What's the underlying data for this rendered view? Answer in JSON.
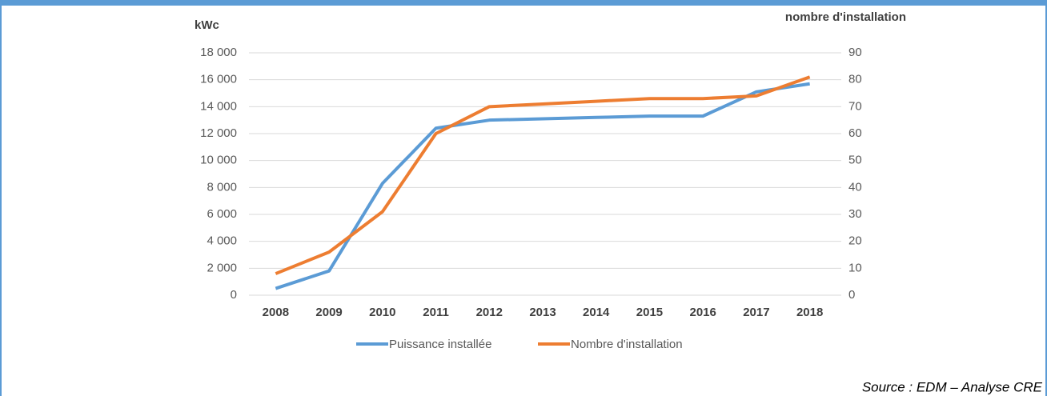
{
  "chart_data": {
    "type": "line",
    "y_label": "kWc",
    "y2_label": "nombre d'installation",
    "categories": [
      "2008",
      "2009",
      "2010",
      "2011",
      "2012",
      "2013",
      "2014",
      "2015",
      "2016",
      "2017",
      "2018"
    ],
    "series": [
      {
        "name": "Puissance installée",
        "color": "#5b9bd5",
        "values": [
          500,
          1800,
          8300,
          12400,
          13000,
          13100,
          13200,
          13300,
          13300,
          15100,
          15700
        ]
      },
      {
        "name": "Nombre d'installation",
        "color": "#ed7d31",
        "axis": "y2",
        "values": [
          8,
          16,
          31,
          60,
          70,
          71,
          72,
          73,
          73,
          74,
          81
        ]
      }
    ],
    "ylim": [
      0,
      18000
    ],
    "yticks": [
      0,
      {
        "value": 2000,
        "label": "2 000"
      },
      {
        "value": 4000,
        "label": "4 000"
      },
      {
        "value": 6000,
        "label": "6 000"
      },
      {
        "value": 8000,
        "label": "8 000"
      },
      {
        "value": 10000,
        "label": "10 000"
      },
      {
        "value": 12000,
        "label": "12 000"
      },
      {
        "value": 14000,
        "label": "14 000"
      },
      {
        "value": 16000,
        "label": "16 000"
      },
      {
        "value": 18000,
        "label": "18 000"
      }
    ],
    "y2lim": [
      0,
      90
    ],
    "y2ticks": [
      0,
      10,
      20,
      30,
      40,
      50,
      60,
      70,
      80,
      90
    ],
    "grid": true,
    "legend": "bottom",
    "source": "Source : EDM – Analyse CRE"
  }
}
